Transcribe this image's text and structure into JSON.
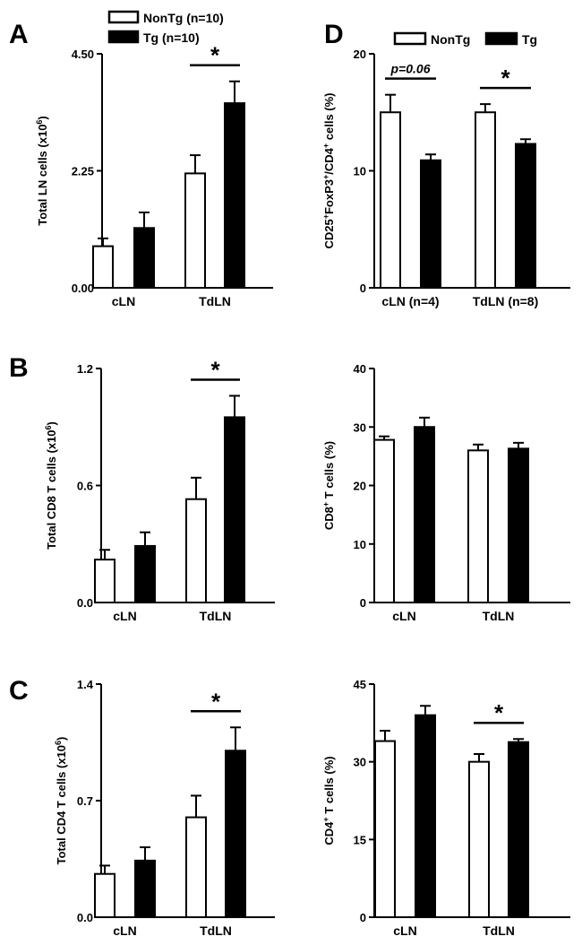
{
  "colors": {
    "nontg": "#ffffff",
    "tg": "#000000",
    "axis": "#000000"
  },
  "panels": [
    {
      "id": "A",
      "letter": "A",
      "ylabel": "Total LN cells (x10<sup>6</sup>)",
      "ytick_labels": [
        "0.00",
        "2.25",
        "4.50"
      ],
      "legend": {
        "labels": [
          "NonTg (n=10)",
          "Tg (n=10)"
        ]
      },
      "chart_data": {
        "type": "bar",
        "categories": [
          "cLN",
          "TdLN"
        ],
        "ylim": [
          0,
          4.5
        ],
        "series": [
          {
            "name": "NonTg (n=10)",
            "values": [
              0.8,
              2.2
            ],
            "errors": [
              0.15,
              0.35
            ]
          },
          {
            "name": "Tg (n=10)",
            "values": [
              1.15,
              3.55
            ],
            "errors": [
              0.3,
              0.42
            ]
          }
        ],
        "annotations": [
          {
            "category": "TdLN",
            "text": "*"
          }
        ]
      }
    },
    {
      "id": "D",
      "letter": "D",
      "ylabel": "CD25<sup>+</sup>FoxP3<sup>+</sup>/CD4<sup>+</sup> cells (%)",
      "ytick_labels": [
        "0",
        "10",
        "20"
      ],
      "legend": {
        "labels": [
          "NonTg",
          "Tg"
        ]
      },
      "chart_data": {
        "type": "bar",
        "categories": [
          "cLN (n=4)",
          "TdLN (n=8)"
        ],
        "ylim": [
          0,
          20
        ],
        "series": [
          {
            "name": "NonTg",
            "values": [
              15.0,
              15.0
            ],
            "errors": [
              1.5,
              0.7
            ]
          },
          {
            "name": "Tg",
            "values": [
              10.9,
              12.3
            ],
            "errors": [
              0.5,
              0.4
            ]
          }
        ],
        "annotations": [
          {
            "category": "cLN (n=4)",
            "text": "p=0.06"
          },
          {
            "category": "TdLN (n=8)",
            "text": "*"
          }
        ]
      }
    },
    {
      "id": "B",
      "letter": "B",
      "ylabel": "Total CD8 T cells (x10<sup>6</sup>)",
      "ytick_labels": [
        "0.0",
        "0.6",
        "1.2"
      ],
      "chart_data": {
        "type": "bar",
        "categories": [
          "cLN",
          "TdLN"
        ],
        "ylim": [
          0,
          1.2
        ],
        "series": [
          {
            "values": [
              0.22,
              0.53
            ],
            "errors": [
              0.05,
              0.11
            ]
          },
          {
            "values": [
              0.29,
              0.95
            ],
            "errors": [
              0.07,
              0.11
            ]
          }
        ],
        "annotations": [
          {
            "category": "TdLN",
            "text": "*"
          }
        ]
      }
    },
    {
      "id": "B2",
      "letter": "",
      "ylabel": "CD8<sup>+</sup> T cells (%)",
      "ytick_labels": [
        "0",
        "10",
        "20",
        "30",
        "40"
      ],
      "chart_data": {
        "type": "bar",
        "categories": [
          "cLN",
          "TdLN"
        ],
        "ylim": [
          0,
          40
        ],
        "series": [
          {
            "values": [
              27.8,
              26.0
            ],
            "errors": [
              0.6,
              1.0
            ]
          },
          {
            "values": [
              30.0,
              26.3
            ],
            "errors": [
              1.6,
              1.0
            ]
          }
        ],
        "annotations": []
      }
    },
    {
      "id": "C",
      "letter": "C",
      "ylabel": "Total CD4 T cells (x10<sup>6</sup>)",
      "ytick_labels": [
        "0.0",
        "0.7",
        "1.4"
      ],
      "chart_data": {
        "type": "bar",
        "categories": [
          "cLN",
          "TdLN"
        ],
        "ylim": [
          0,
          1.4
        ],
        "series": [
          {
            "values": [
              0.26,
              0.6
            ],
            "errors": [
              0.05,
              0.13
            ]
          },
          {
            "values": [
              0.34,
              1.0
            ],
            "errors": [
              0.08,
              0.14
            ]
          }
        ],
        "annotations": [
          {
            "category": "TdLN",
            "text": "*"
          }
        ]
      }
    },
    {
      "id": "C2",
      "letter": "",
      "ylabel": "CD4<sup>+</sup> T cells (%)",
      "ytick_labels": [
        "0",
        "15",
        "30",
        "45"
      ],
      "chart_data": {
        "type": "bar",
        "categories": [
          "cLN",
          "TdLN"
        ],
        "ylim": [
          0,
          45
        ],
        "series": [
          {
            "values": [
              34.0,
              30.0
            ],
            "errors": [
              2.0,
              1.5
            ]
          },
          {
            "values": [
              39.0,
              33.8
            ],
            "errors": [
              1.8,
              0.6
            ]
          }
        ],
        "annotations": [
          {
            "category": "TdLN",
            "text": "*"
          }
        ]
      }
    }
  ]
}
